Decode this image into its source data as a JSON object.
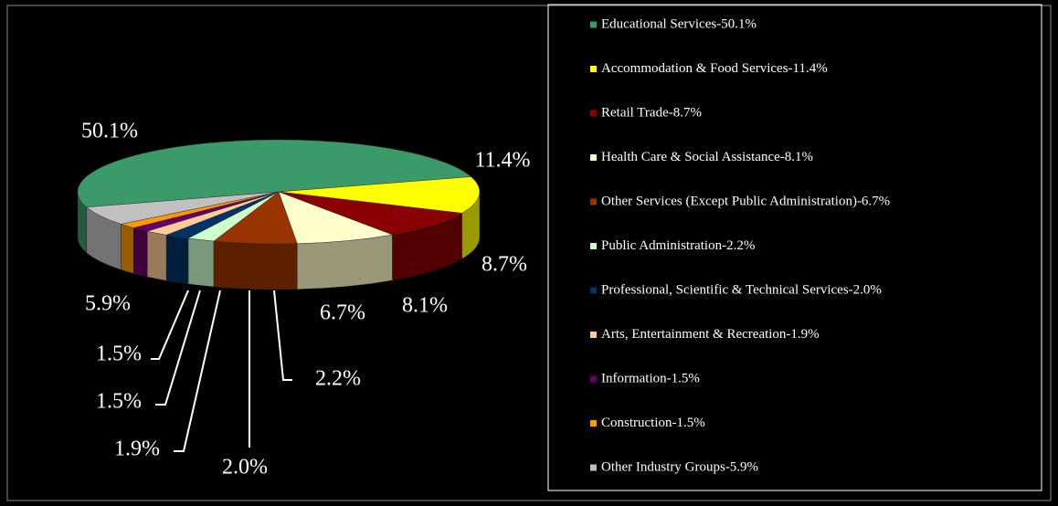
{
  "chart_data": {
    "type": "pie",
    "categories": [
      "Educational Services-50.1%",
      "Accommodation & Food Services-11.4%",
      "Retail Trade-8.7%",
      "Health Care & Social Assistance-8.1%",
      "Other Services (Except Public Administration)-6.7%",
      "Public Administration-2.2%",
      "Professional, Scientific & Technical Services-2.0%",
      "Arts, Entertainment & Recreation-1.9%",
      "Information-1.5%",
      "Construction-1.5%",
      "Other Industry Groups-5.9%"
    ],
    "values": [
      50.1,
      11.4,
      8.7,
      8.1,
      6.7,
      2.2,
      2.0,
      1.9,
      1.5,
      1.5,
      5.9
    ],
    "value_labels": [
      "50.1%",
      "11.4%",
      "8.7%",
      "8.1%",
      "6.7%",
      "2.2%",
      "2.0%",
      "1.9%",
      "1.5%",
      "1.5%",
      "5.9%"
    ],
    "colors": [
      "#3a9a6a",
      "#ffff00",
      "#8b0000",
      "#ffffcc",
      "#993300",
      "#ccffcc",
      "#003366",
      "#ffcc99",
      "#660066",
      "#ff9900",
      "#c0c0c0"
    ],
    "legend": "right"
  }
}
